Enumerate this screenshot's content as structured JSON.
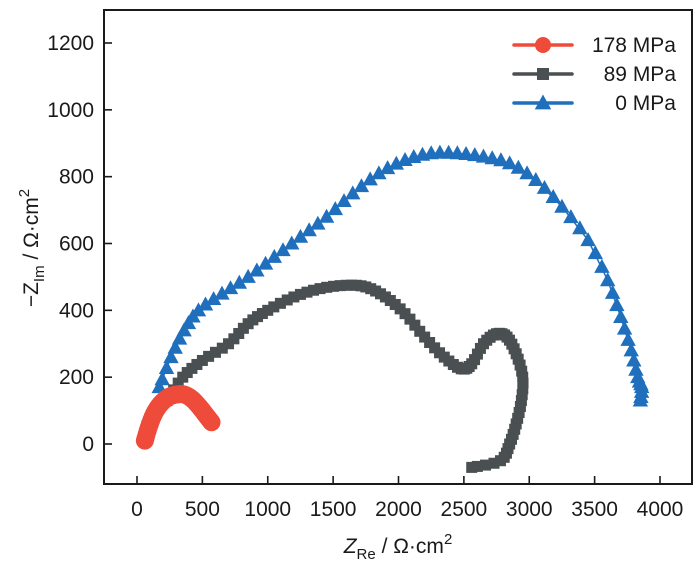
{
  "chart_data": {
    "type": "scatter",
    "title": "",
    "xlabel": {
      "main": "Z",
      "sub": "Re",
      "rest": " / Ω·cm",
      "sup": "2"
    },
    "ylabel": {
      "prefix": "−Z",
      "sub": "Im",
      "rest": " / Ω·cm",
      "sup": "2"
    },
    "xlim": [
      -250,
      4250
    ],
    "ylim": [
      -100,
      1300
    ],
    "x_ticks": [
      0,
      500,
      1000,
      1500,
      2000,
      2500,
      3000,
      3500,
      4000
    ],
    "x_tick_labels": [
      "0",
      "500",
      "1000",
      "1500",
      "2000",
      "2500",
      "3000",
      "3500",
      "4000"
    ],
    "y_ticks": [
      0,
      200,
      400,
      600,
      800,
      1000,
      1200
    ],
    "y_tick_labels": [
      "0",
      "200",
      "400",
      "600",
      "800",
      "1000",
      "1200"
    ],
    "grid": false,
    "legend_position": "top-right",
    "series": [
      {
        "name": "178 MPa",
        "color": "#ee4b3b",
        "marker": "circle",
        "points": [
          [
            60,
            10
          ],
          [
            90,
            50
          ],
          [
            130,
            90
          ],
          [
            180,
            120
          ],
          [
            240,
            140
          ],
          [
            300,
            148
          ],
          [
            360,
            148
          ],
          [
            420,
            135
          ],
          [
            480,
            110
          ],
          [
            530,
            85
          ],
          [
            570,
            65
          ]
        ]
      },
      {
        "name": "89 MPa",
        "color": "#4a4f52",
        "marker": "square",
        "points": [
          [
            230,
            130
          ],
          [
            350,
            200
          ],
          [
            500,
            250
          ],
          [
            700,
            300
          ],
          [
            850,
            360
          ],
          [
            1000,
            400
          ],
          [
            1200,
            440
          ],
          [
            1400,
            465
          ],
          [
            1600,
            475
          ],
          [
            1750,
            470
          ],
          [
            1900,
            440
          ],
          [
            2050,
            390
          ],
          [
            2200,
            320
          ],
          [
            2350,
            260
          ],
          [
            2480,
            225
          ],
          [
            2560,
            240
          ],
          [
            2650,
            300
          ],
          [
            2750,
            330
          ],
          [
            2830,
            320
          ],
          [
            2900,
            270
          ],
          [
            2950,
            200
          ],
          [
            2940,
            130
          ],
          [
            2900,
            60
          ],
          [
            2850,
            0
          ],
          [
            2780,
            -50
          ],
          [
            2560,
            -70
          ]
        ]
      },
      {
        "name": "0 MPa",
        "color": "#1f6fbd",
        "marker": "triangle",
        "points": [
          [
            170,
            170
          ],
          [
            260,
            260
          ],
          [
            360,
            340
          ],
          [
            470,
            400
          ],
          [
            650,
            450
          ],
          [
            850,
            500
          ],
          [
            1050,
            560
          ],
          [
            1250,
            620
          ],
          [
            1450,
            680
          ],
          [
            1650,
            750
          ],
          [
            1850,
            810
          ],
          [
            2050,
            850
          ],
          [
            2250,
            870
          ],
          [
            2450,
            870
          ],
          [
            2650,
            860
          ],
          [
            2850,
            840
          ],
          [
            3050,
            790
          ],
          [
            3250,
            710
          ],
          [
            3450,
            610
          ],
          [
            3600,
            490
          ],
          [
            3700,
            380
          ],
          [
            3780,
            280
          ],
          [
            3830,
            200
          ],
          [
            3860,
            170
          ],
          [
            3850,
            130
          ]
        ]
      }
    ]
  }
}
